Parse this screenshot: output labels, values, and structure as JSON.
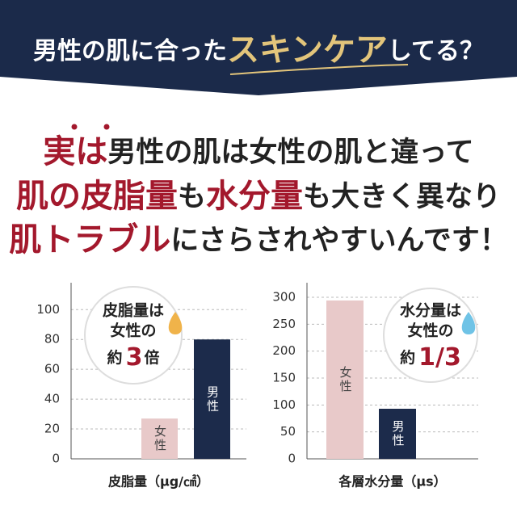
{
  "header": {
    "title_prefix": "男性の肌に合った",
    "title_highlight": "スキンケア",
    "title_suffix": "してる？"
  },
  "message": {
    "lines": [
      [
        {
          "text": "実は",
          "accent": true
        },
        {
          "text": "男性の肌は女性の肌と違って",
          "accent": false
        }
      ],
      [
        {
          "text": "肌の皮脂量",
          "accent": true
        },
        {
          "text": "も",
          "accent": false
        },
        {
          "text": "水分量",
          "accent": true
        },
        {
          "text": "も大きく異なり",
          "accent": false
        }
      ],
      [
        {
          "text": "肌トラブル",
          "accent": true
        },
        {
          "text": "にさらされやすいんです！",
          "accent": false
        }
      ]
    ]
  },
  "chart_data": [
    {
      "type": "bar",
      "x_label": "皮脂量（μg/㎠）",
      "categories": [
        "女性",
        "男性"
      ],
      "values": [
        27,
        80
      ],
      "colors": [
        "#e8c9c9",
        "#1c2b4b"
      ],
      "ylim": [
        0,
        118
      ],
      "yticks": [
        0,
        20,
        40,
        60,
        80,
        100
      ],
      "grid": true,
      "callout": {
        "lines": [
          "皮脂量は",
          "女性の"
        ],
        "prefix": "約",
        "value": "3",
        "suffix": "倍"
      }
    },
    {
      "type": "bar",
      "x_label": "各層水分量（μs）",
      "categories": [
        "女性",
        "男性"
      ],
      "values": [
        294,
        93
      ],
      "colors": [
        "#e8c9c9",
        "#1c2b4b"
      ],
      "ylim": [
        0,
        327
      ],
      "yticks": [
        0,
        50,
        100,
        150,
        200,
        250,
        300
      ],
      "grid": true,
      "callout": {
        "lines": [
          "水分量は",
          "女性の"
        ],
        "prefix": "約",
        "value": "1/3",
        "suffix": null
      }
    }
  ]
}
